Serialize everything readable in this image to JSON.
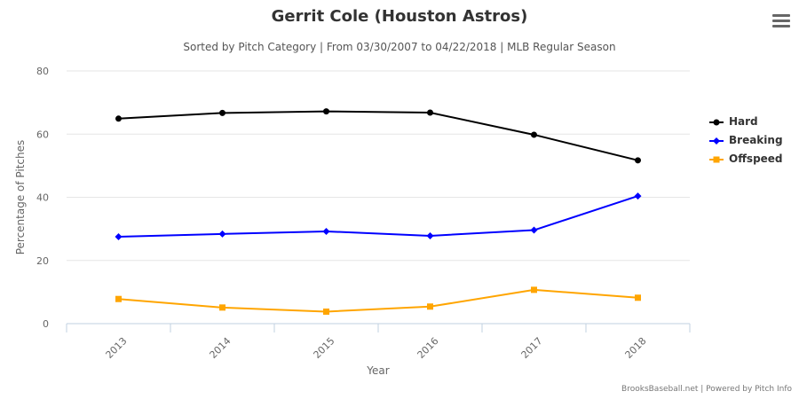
{
  "header": {
    "title": "Gerrit Cole (Houston Astros)",
    "subtitle": "Sorted by Pitch Category | From 03/30/2007 to 04/22/2018 | MLB Regular Season",
    "menu_icon": "hamburger-menu-icon"
  },
  "credits": "BrooksBaseball.net | Powered by Pitch Info",
  "chart_data": {
    "type": "line",
    "title": "Gerrit Cole (Houston Astros)",
    "subtitle": "Sorted by Pitch Category | From 03/30/2007 to 04/22/2018 | MLB Regular Season",
    "xlabel": "Year",
    "ylabel": "Percentage of Pitches",
    "categories": [
      "2013",
      "2014",
      "2015",
      "2016",
      "2017",
      "2018"
    ],
    "yticks": [
      "0",
      "20",
      "40",
      "60",
      "80"
    ],
    "ylim": [
      0,
      80
    ],
    "grid": true,
    "legend_position": "right",
    "series": [
      {
        "name": "Hard",
        "color": "#000000",
        "marker": "circle",
        "values": [
          64.9,
          66.7,
          67.2,
          66.8,
          59.8,
          51.7
        ]
      },
      {
        "name": "Breaking",
        "color": "#0000ff",
        "marker": "diamond",
        "values": [
          27.5,
          28.4,
          29.2,
          27.8,
          29.6,
          40.4
        ]
      },
      {
        "name": "Offspeed",
        "color": "#ffa500",
        "marker": "square",
        "values": [
          7.8,
          5.1,
          3.8,
          5.4,
          10.7,
          8.2
        ]
      }
    ]
  }
}
